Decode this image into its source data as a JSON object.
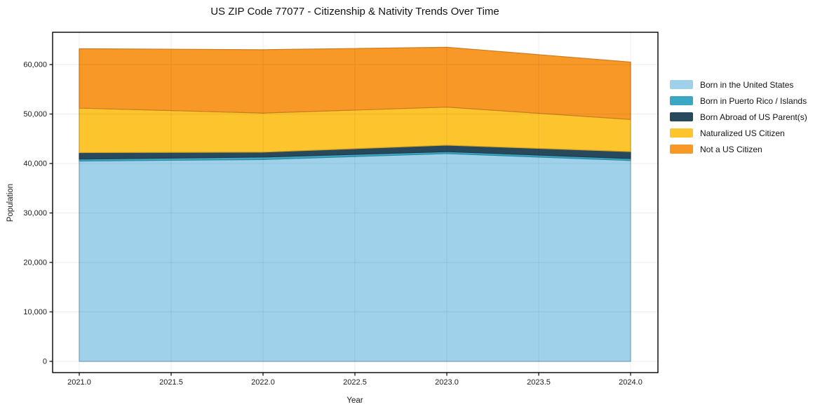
{
  "title": "US ZIP Code 77077 - Citizenship & Nativity Trends Over Time",
  "chart_data": {
    "type": "area",
    "stacked": true,
    "title": "US ZIP Code 77077 - Citizenship & Nativity Trends Over Time",
    "xlabel": "Year",
    "ylabel": "Population",
    "x": [
      2021,
      2022,
      2023,
      2024
    ],
    "series": [
      {
        "name": "Born in the United States",
        "color": "#9fd2ea",
        "values": [
          40500,
          40800,
          42000,
          40600
        ]
      },
      {
        "name": "Born in Puerto Rico / Islands",
        "color": "#3ba7c4",
        "values": [
          400,
          500,
          400,
          400
        ]
      },
      {
        "name": "Born Abroad of US Parent(s)",
        "color": "#28495c",
        "values": [
          1300,
          1000,
          1300,
          1400
        ]
      },
      {
        "name": "Naturalized US Citizen",
        "color": "#fcc52d",
        "values": [
          9000,
          7900,
          7700,
          6500
        ]
      },
      {
        "name": "Not a US Citizen",
        "color": "#f89827",
        "values": [
          12000,
          12800,
          12100,
          11600
        ]
      }
    ],
    "x_ticks": {
      "values": [
        2021.0,
        2021.5,
        2022.0,
        2022.5,
        2023.0,
        2023.5,
        2024.0
      ],
      "labels": [
        "2021.0",
        "2021.5",
        "2022.0",
        "2022.5",
        "2023.0",
        "2023.5",
        "2024.0"
      ]
    },
    "y_ticks": {
      "values": [
        0,
        10000,
        20000,
        30000,
        40000,
        50000,
        60000
      ],
      "labels": [
        "0",
        "10,000",
        "20,000",
        "30,000",
        "40,000",
        "50,000",
        "60,000"
      ]
    },
    "ylim": [
      -2300,
      66500
    ],
    "xlim": [
      2020.855,
      2024.149
    ],
    "grid": true,
    "legend_position": "right-outside"
  }
}
